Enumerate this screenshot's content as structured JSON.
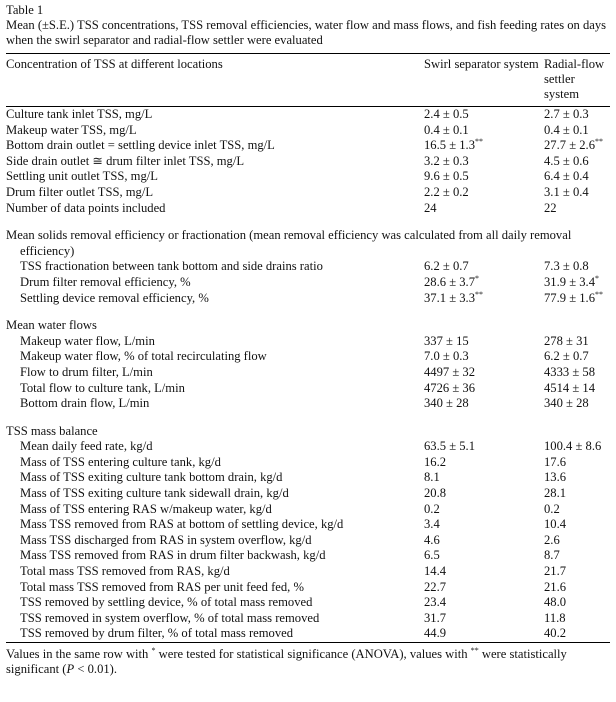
{
  "table": {
    "label": "Table 1",
    "caption": "Mean (±S.E.) TSS concentrations, TSS removal efficiencies, water flow and mass flows, and fish feeding rates on days when the swirl separator and radial-flow settler were evaluated",
    "header": [
      "Concentration of TSS at different locations",
      "Swirl separator system",
      "Radial-flow settler system"
    ],
    "sections": [
      {
        "rows": [
          [
            "Culture tank inlet TSS, mg/L",
            "2.4 ± 0.5",
            "2.7 ± 0.3"
          ],
          [
            "Makeup water TSS, mg/L",
            "0.4 ± 0.1",
            "0.4 ± 0.1"
          ],
          [
            "Bottom drain outlet = settling device inlet TSS, mg/L",
            {
              "text": "16.5 ± 1.3",
              "sup": "**"
            },
            {
              "text": "27.7 ± 2.6",
              "sup": "**"
            }
          ],
          [
            "Side drain outlet ≅ drum filter inlet TSS, mg/L",
            "3.2 ± 0.3",
            "4.5 ± 0.6"
          ],
          [
            "Settling unit outlet TSS, mg/L",
            "9.6 ± 0.5",
            "6.4 ± 0.4"
          ],
          [
            "Drum filter outlet TSS, mg/L",
            "2.2 ± 0.2",
            "3.1 ± 0.4"
          ],
          [
            "Number of data points included",
            "24",
            "22"
          ]
        ]
      },
      {
        "title": "Mean solids removal efficiency or fractionation (mean removal efficiency was calculated from all daily removal efficiency)",
        "rows": [
          [
            "TSS fractionation between tank bottom and side drains ratio",
            "6.2 ± 0.7",
            "7.3 ± 0.8"
          ],
          [
            "Drum filter removal efficiency, %",
            {
              "text": "28.6 ± 3.7",
              "sup": "*"
            },
            {
              "text": "31.9 ± 3.4",
              "sup": "*"
            }
          ],
          [
            "Settling device removal efficiency, %",
            {
              "text": "37.1 ± 3.3",
              "sup": "**"
            },
            {
              "text": "77.9 ± 1.6",
              "sup": "**"
            }
          ]
        ]
      },
      {
        "title": "Mean water flows",
        "rows": [
          [
            "Makeup water flow, L/min",
            "337 ± 15",
            "278 ± 31"
          ],
          [
            "Makeup water flow, % of total recirculating flow",
            "7.0 ± 0.3",
            "6.2 ± 0.7"
          ],
          [
            "Flow to drum filter, L/min",
            "4497 ± 32",
            "4333 ± 58"
          ],
          [
            "Total flow to culture tank, L/min",
            "4726 ± 36",
            "4514 ± 14"
          ],
          [
            "Bottom drain flow, L/min",
            "340 ± 28",
            "340 ± 28"
          ]
        ]
      },
      {
        "title": "TSS mass balance",
        "rows": [
          [
            "Mean daily feed rate, kg/d",
            "63.5 ± 5.1",
            "100.4 ± 8.6"
          ],
          [
            "Mass of TSS entering culture tank, kg/d",
            "16.2",
            "17.6"
          ],
          [
            "Mass of TSS exiting culture tank bottom drain, kg/d",
            "8.1",
            "13.6"
          ],
          [
            "Mass of TSS exiting culture tank sidewall drain, kg/d",
            "20.8",
            "28.1"
          ],
          [
            "Mass of TSS entering RAS w/makeup water, kg/d",
            "0.2",
            "0.2"
          ],
          [
            "Mass TSS removed from RAS at bottom of settling device, kg/d",
            "3.4",
            "10.4"
          ],
          [
            "Mass TSS discharged from RAS in system overflow, kg/d",
            "4.6",
            "2.6"
          ],
          [
            "Mass TSS removed from RAS in drum filter backwash, kg/d",
            "6.5",
            "8.7"
          ],
          [
            "Total mass TSS removed from RAS, kg/d",
            "14.4",
            "21.7"
          ],
          [
            "Total mass TSS removed from RAS per unit feed fed, %",
            "22.7",
            "21.6"
          ],
          [
            "TSS removed by settling device, % of total mass removed",
            "23.4",
            "48.0"
          ],
          [
            "TSS removed in system overflow, % of total mass removed",
            "31.7",
            "11.8"
          ],
          [
            "TSS removed by drum filter, % of total mass removed",
            "44.9",
            "40.2"
          ]
        ]
      }
    ],
    "footnote": [
      "Values in the same row with ",
      "*",
      " were tested for statistical significance (ANOVA), values with ",
      "**",
      " were statistically significant (",
      "P",
      " < 0.01)."
    ]
  }
}
